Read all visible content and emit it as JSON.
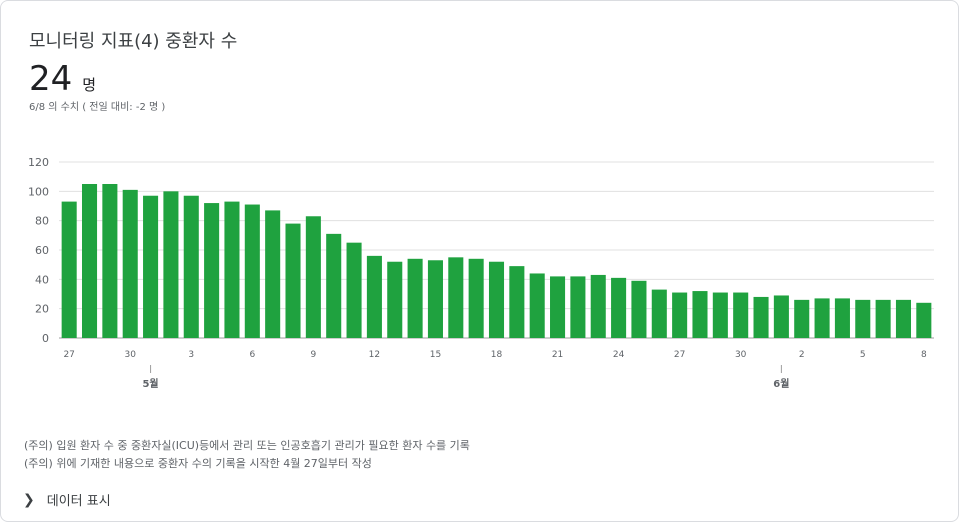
{
  "header": {
    "title": "모니터링 지표(4) 중환자 수",
    "value": "24",
    "unit": "명",
    "subtitle": "6/8 의 수치 ( 전일 대비: -2 명 )"
  },
  "notes": [
    "(주의) 입원 환자 수 중 중환자실(ICU)등에서 관리 또는 인공호흡기 관리가 필요한 환자 수를 기록",
    "(주의) 위에 기재한 내용으로 중환자 수의 기록을 시작한 4월 27일부터 작성"
  ],
  "toggle": {
    "label": "데이터 표시",
    "icon": "chevron-right-icon"
  },
  "colors": {
    "bar": "#1fa23f",
    "grid": "#e0e0e0",
    "axis_text": "#5f6368"
  },
  "chart_data": {
    "type": "bar",
    "x_tick_labels": [
      "27",
      "30",
      "3",
      "6",
      "9",
      "12",
      "15",
      "18",
      "21",
      "24",
      "27",
      "30",
      "2",
      "5",
      "8"
    ],
    "month_labels": [
      "5월",
      "6월"
    ],
    "categories": [
      "4/27",
      "4/28",
      "4/29",
      "4/30",
      "5/1",
      "5/2",
      "5/3",
      "5/4",
      "5/5",
      "5/6",
      "5/7",
      "5/8",
      "5/9",
      "5/10",
      "5/11",
      "5/12",
      "5/13",
      "5/14",
      "5/15",
      "5/16",
      "5/17",
      "5/18",
      "5/19",
      "5/20",
      "5/21",
      "5/22",
      "5/23",
      "5/24",
      "5/25",
      "5/26",
      "5/27",
      "5/28",
      "5/29",
      "5/30",
      "5/31",
      "6/1",
      "6/2",
      "6/3",
      "6/4",
      "6/5",
      "6/6",
      "6/7",
      "6/8"
    ],
    "values": [
      93,
      105,
      105,
      101,
      97,
      100,
      97,
      92,
      93,
      91,
      87,
      78,
      83,
      71,
      65,
      56,
      52,
      54,
      53,
      55,
      54,
      52,
      49,
      44,
      42,
      42,
      43,
      41,
      39,
      33,
      31,
      32,
      31,
      31,
      28,
      29,
      26,
      27,
      27,
      26,
      26,
      26,
      24
    ],
    "ylim": [
      0,
      120
    ],
    "yticks": [
      0,
      20,
      40,
      60,
      80,
      100,
      120
    ],
    "grid": true
  }
}
